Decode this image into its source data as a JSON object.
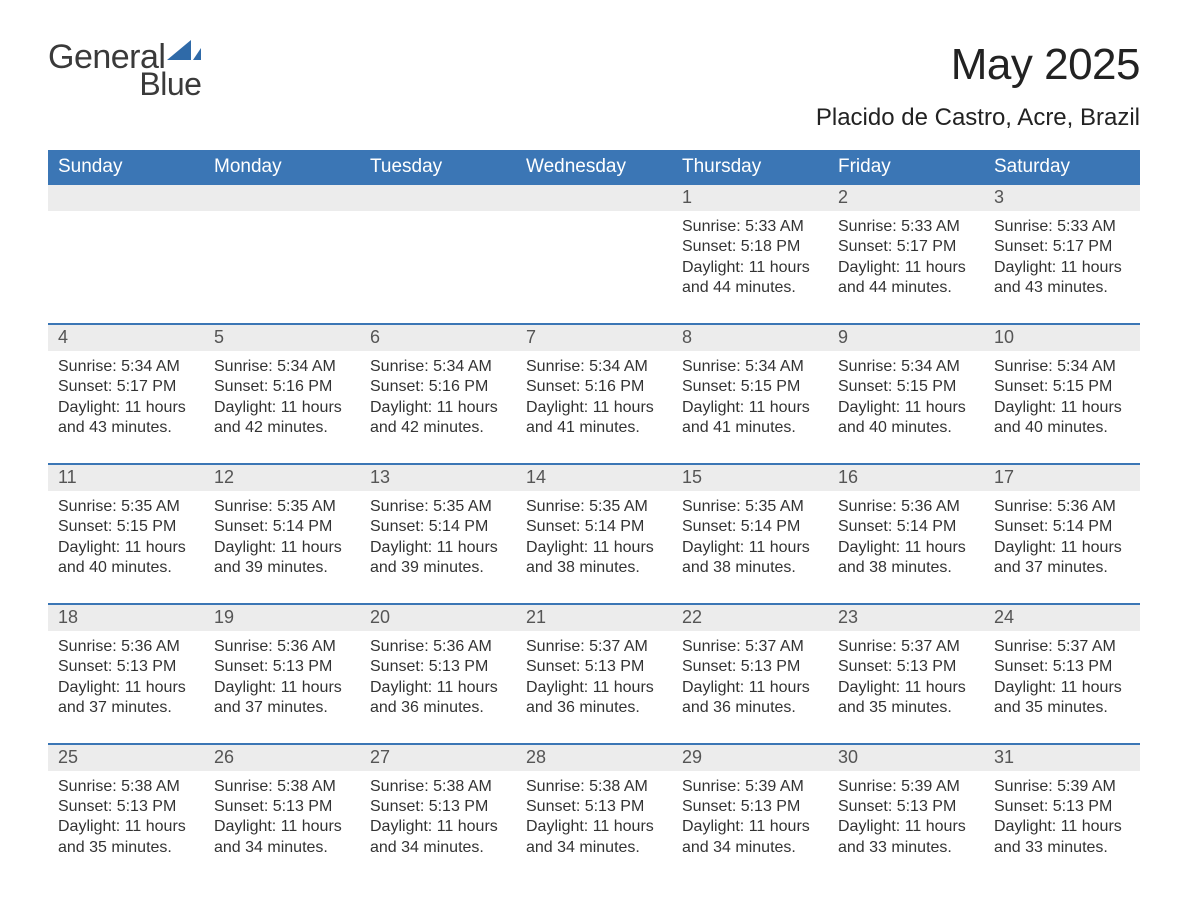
{
  "logo": {
    "word1": "General",
    "word2": "Blue",
    "sail_color": "#2f6aa8",
    "text_color_dark": "#3a3a3a"
  },
  "header": {
    "month_title": "May 2025",
    "location": "Placido de Castro, Acre, Brazil"
  },
  "colors": {
    "header_bg": "#3b76b5",
    "header_text": "#ffffff",
    "row_divider": "#3b76b5",
    "daynum_bg": "#ececec",
    "daynum_text": "#555555",
    "body_text": "#333333",
    "background": "#ffffff"
  },
  "typography": {
    "title_fontsize": 44,
    "location_fontsize": 24,
    "weekday_fontsize": 19,
    "daynum_fontsize": 18,
    "cell_fontsize": 16
  },
  "layout": {
    "columns": 7,
    "weeks": 5,
    "first_weekday_index": 4
  },
  "weekday_labels": [
    "Sunday",
    "Monday",
    "Tuesday",
    "Wednesday",
    "Thursday",
    "Friday",
    "Saturday"
  ],
  "days": [
    {
      "n": 1,
      "sunrise": "5:33 AM",
      "sunset": "5:18 PM",
      "daylight": "11 hours and 44 minutes."
    },
    {
      "n": 2,
      "sunrise": "5:33 AM",
      "sunset": "5:17 PM",
      "daylight": "11 hours and 44 minutes."
    },
    {
      "n": 3,
      "sunrise": "5:33 AM",
      "sunset": "5:17 PM",
      "daylight": "11 hours and 43 minutes."
    },
    {
      "n": 4,
      "sunrise": "5:34 AM",
      "sunset": "5:17 PM",
      "daylight": "11 hours and 43 minutes."
    },
    {
      "n": 5,
      "sunrise": "5:34 AM",
      "sunset": "5:16 PM",
      "daylight": "11 hours and 42 minutes."
    },
    {
      "n": 6,
      "sunrise": "5:34 AM",
      "sunset": "5:16 PM",
      "daylight": "11 hours and 42 minutes."
    },
    {
      "n": 7,
      "sunrise": "5:34 AM",
      "sunset": "5:16 PM",
      "daylight": "11 hours and 41 minutes."
    },
    {
      "n": 8,
      "sunrise": "5:34 AM",
      "sunset": "5:15 PM",
      "daylight": "11 hours and 41 minutes."
    },
    {
      "n": 9,
      "sunrise": "5:34 AM",
      "sunset": "5:15 PM",
      "daylight": "11 hours and 40 minutes."
    },
    {
      "n": 10,
      "sunrise": "5:34 AM",
      "sunset": "5:15 PM",
      "daylight": "11 hours and 40 minutes."
    },
    {
      "n": 11,
      "sunrise": "5:35 AM",
      "sunset": "5:15 PM",
      "daylight": "11 hours and 40 minutes."
    },
    {
      "n": 12,
      "sunrise": "5:35 AM",
      "sunset": "5:14 PM",
      "daylight": "11 hours and 39 minutes."
    },
    {
      "n": 13,
      "sunrise": "5:35 AM",
      "sunset": "5:14 PM",
      "daylight": "11 hours and 39 minutes."
    },
    {
      "n": 14,
      "sunrise": "5:35 AM",
      "sunset": "5:14 PM",
      "daylight": "11 hours and 38 minutes."
    },
    {
      "n": 15,
      "sunrise": "5:35 AM",
      "sunset": "5:14 PM",
      "daylight": "11 hours and 38 minutes."
    },
    {
      "n": 16,
      "sunrise": "5:36 AM",
      "sunset": "5:14 PM",
      "daylight": "11 hours and 38 minutes."
    },
    {
      "n": 17,
      "sunrise": "5:36 AM",
      "sunset": "5:14 PM",
      "daylight": "11 hours and 37 minutes."
    },
    {
      "n": 18,
      "sunrise": "5:36 AM",
      "sunset": "5:13 PM",
      "daylight": "11 hours and 37 minutes."
    },
    {
      "n": 19,
      "sunrise": "5:36 AM",
      "sunset": "5:13 PM",
      "daylight": "11 hours and 37 minutes."
    },
    {
      "n": 20,
      "sunrise": "5:36 AM",
      "sunset": "5:13 PM",
      "daylight": "11 hours and 36 minutes."
    },
    {
      "n": 21,
      "sunrise": "5:37 AM",
      "sunset": "5:13 PM",
      "daylight": "11 hours and 36 minutes."
    },
    {
      "n": 22,
      "sunrise": "5:37 AM",
      "sunset": "5:13 PM",
      "daylight": "11 hours and 36 minutes."
    },
    {
      "n": 23,
      "sunrise": "5:37 AM",
      "sunset": "5:13 PM",
      "daylight": "11 hours and 35 minutes."
    },
    {
      "n": 24,
      "sunrise": "5:37 AM",
      "sunset": "5:13 PM",
      "daylight": "11 hours and 35 minutes."
    },
    {
      "n": 25,
      "sunrise": "5:38 AM",
      "sunset": "5:13 PM",
      "daylight": "11 hours and 35 minutes."
    },
    {
      "n": 26,
      "sunrise": "5:38 AM",
      "sunset": "5:13 PM",
      "daylight": "11 hours and 34 minutes."
    },
    {
      "n": 27,
      "sunrise": "5:38 AM",
      "sunset": "5:13 PM",
      "daylight": "11 hours and 34 minutes."
    },
    {
      "n": 28,
      "sunrise": "5:38 AM",
      "sunset": "5:13 PM",
      "daylight": "11 hours and 34 minutes."
    },
    {
      "n": 29,
      "sunrise": "5:39 AM",
      "sunset": "5:13 PM",
      "daylight": "11 hours and 34 minutes."
    },
    {
      "n": 30,
      "sunrise": "5:39 AM",
      "sunset": "5:13 PM",
      "daylight": "11 hours and 33 minutes."
    },
    {
      "n": 31,
      "sunrise": "5:39 AM",
      "sunset": "5:13 PM",
      "daylight": "11 hours and 33 minutes."
    }
  ],
  "labels": {
    "sunrise_prefix": "Sunrise: ",
    "sunset_prefix": "Sunset: ",
    "daylight_prefix": "Daylight: "
  }
}
